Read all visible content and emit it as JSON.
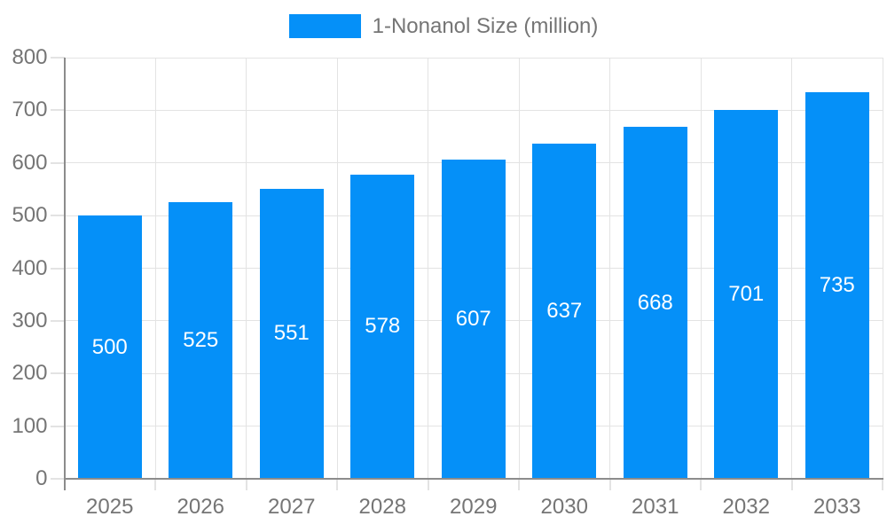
{
  "legend": {
    "label": "1-Nonanol Size (million)"
  },
  "chart_data": {
    "type": "bar",
    "title": "",
    "xlabel": "",
    "ylabel": "",
    "series_name": "1-Nonanol Size (million)",
    "categories": [
      "2025",
      "2026",
      "2027",
      "2028",
      "2029",
      "2030",
      "2031",
      "2032",
      "2033"
    ],
    "values": [
      500,
      525,
      551,
      578,
      607,
      637,
      668,
      701,
      735
    ],
    "yticks": [
      0,
      100,
      200,
      300,
      400,
      500,
      600,
      700,
      800
    ],
    "ylim": [
      0,
      800
    ],
    "grid": true,
    "legend_position": "top",
    "bar_color": "#0590f8",
    "value_label_color": "#ffffff",
    "grid_color": "#e3e3e3",
    "axis_color": "#8c8c8c",
    "text_color": "#757575"
  }
}
